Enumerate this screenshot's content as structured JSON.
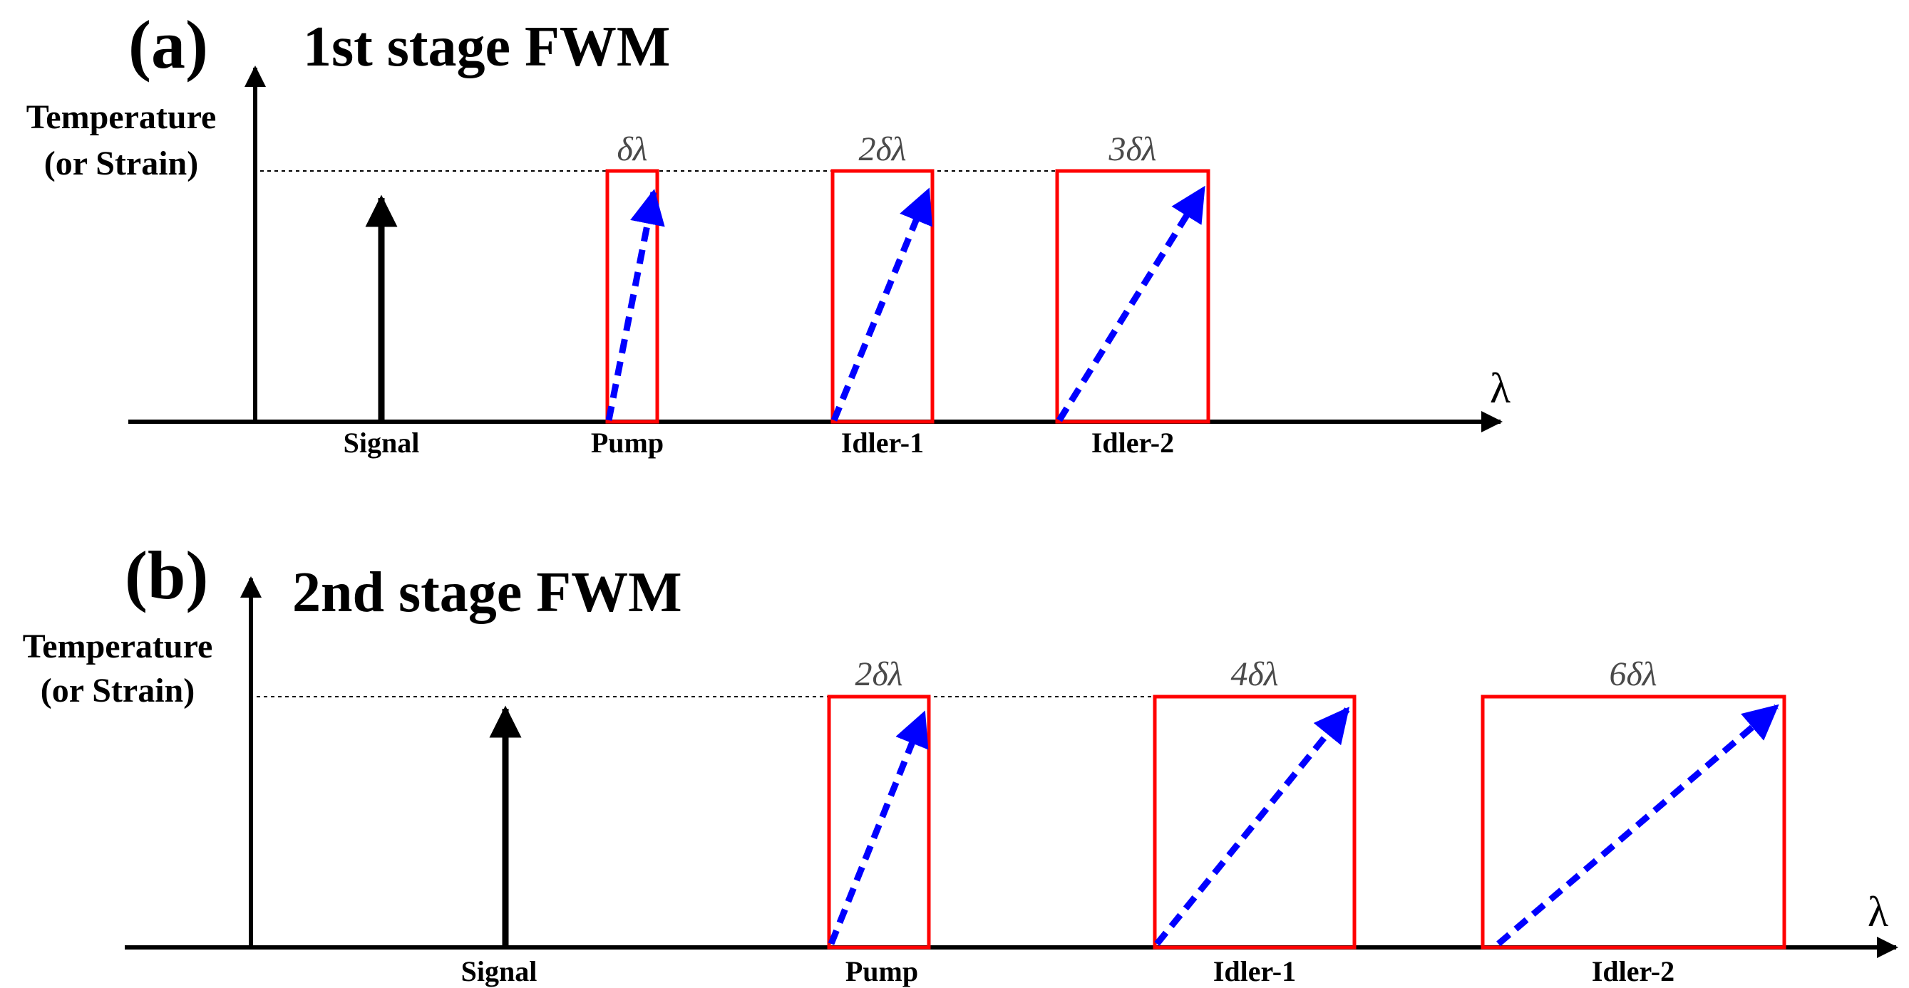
{
  "panels": [
    {
      "letter": "(a)",
      "title": "1st stage FWM",
      "ylabel_line1": "Temperature",
      "ylabel_line2": "(or Strain)",
      "x_axis_symbol": "λ",
      "signal_label": "Signal",
      "boxes": [
        {
          "label": "Pump",
          "width_label": "δλ",
          "relative_width": 1
        },
        {
          "label": "Idler-1",
          "width_label": "2δλ",
          "relative_width": 2
        },
        {
          "label": "Idler-2",
          "width_label": "3δλ",
          "relative_width": 3
        }
      ]
    },
    {
      "letter": "(b)",
      "title": "2nd stage FWM",
      "ylabel_line1": "Temperature",
      "ylabel_line2": "(or Strain)",
      "x_axis_symbol": "λ",
      "signal_label": "Signal",
      "boxes": [
        {
          "label": "Pump",
          "width_label": "2δλ",
          "relative_width": 2
        },
        {
          "label": "Idler-1",
          "width_label": "4δλ",
          "relative_width": 4
        },
        {
          "label": "Idler-2",
          "width_label": "6δλ",
          "relative_width": 6
        }
      ]
    }
  ],
  "colors": {
    "box_outline": "#ff0000",
    "shift_arrow": "#0000ff",
    "axes": "#000000"
  }
}
